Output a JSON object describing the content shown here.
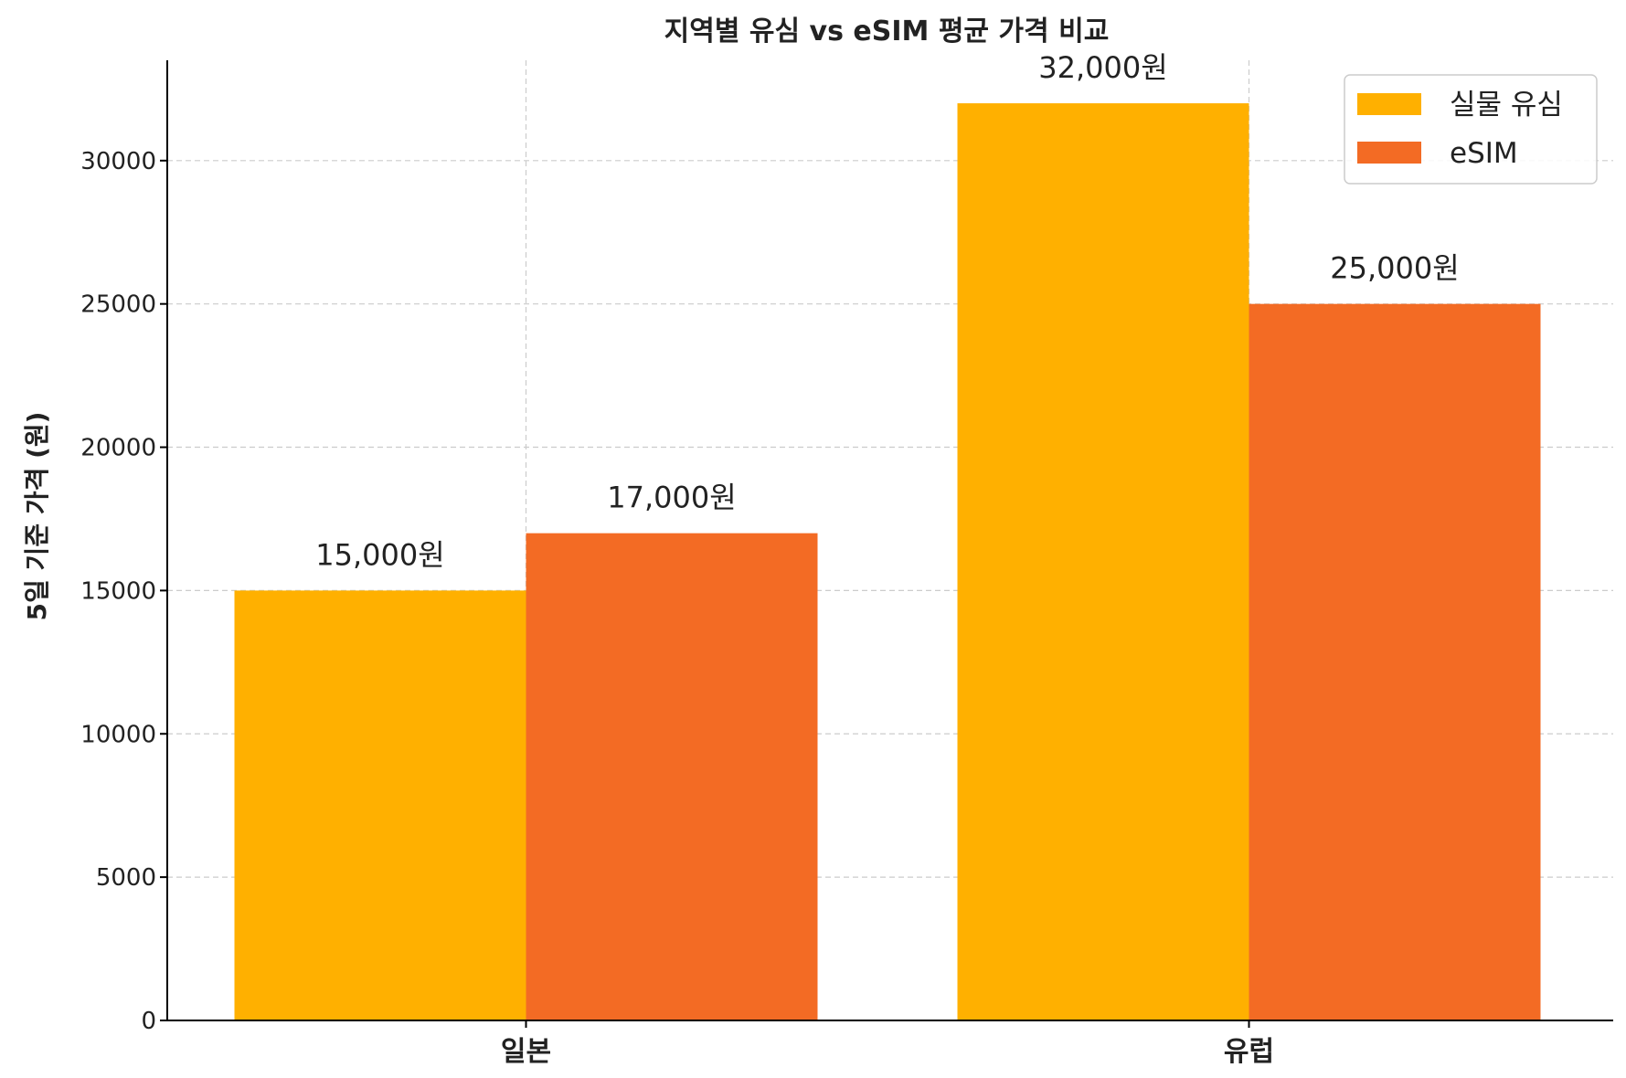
{
  "chart_data": {
    "type": "bar",
    "title": "지역별 유심 vs eSIM 평균 가격 비교",
    "xlabel": "",
    "ylabel": "5일 기준 가격 (원)",
    "categories": [
      "일본",
      "유럽"
    ],
    "series": [
      {
        "name": "실물 유심",
        "values": [
          15000,
          32000
        ],
        "labels": [
          "15,000원",
          "32,000원"
        ],
        "color": "#FFB000"
      },
      {
        "name": "eSIM",
        "values": [
          17000,
          25000
        ],
        "labels": [
          "17,000원",
          "25,000원"
        ],
        "color": "#F36B24"
      }
    ],
    "ylim": [
      0,
      33500
    ],
    "yticks": [
      0,
      5000,
      10000,
      15000,
      20000,
      25000,
      30000
    ],
    "grid": true,
    "legend_position": "top-right"
  }
}
